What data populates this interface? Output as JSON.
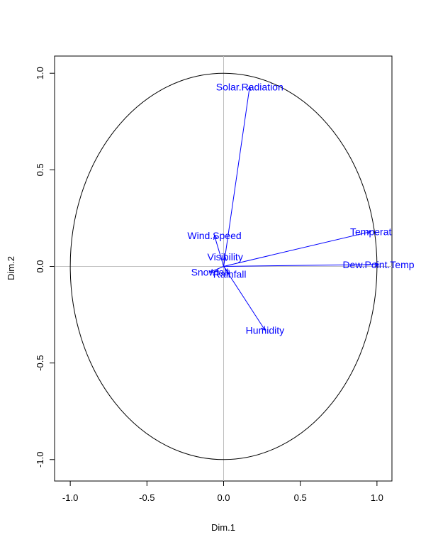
{
  "chart_data": {
    "type": "scatter",
    "xlabel": "Dim.1",
    "ylabel": "Dim.2",
    "xlim": [
      -1.1,
      1.1
    ],
    "ylim": [
      -1.1,
      1.1
    ],
    "x_ticks": [
      -1.0,
      -0.5,
      0.0,
      0.5,
      1.0
    ],
    "x_tick_labels": [
      "-1.0",
      "-0.5",
      "0.0",
      "0.5",
      "1.0"
    ],
    "y_ticks": [
      -1.0,
      -0.5,
      0.0,
      0.5,
      1.0
    ],
    "y_tick_labels": [
      "-1.0",
      "-0.5",
      "0.0",
      "0.5",
      "1.0"
    ],
    "unit_circle": true,
    "reference_lines": [
      0,
      0
    ],
    "arrow_color": "#0000ff",
    "variables": [
      {
        "label": "Solar.Radiation",
        "x": 0.17,
        "y": 0.93
      },
      {
        "label": "Temperat",
        "x": 0.96,
        "y": 0.18
      },
      {
        "label": "Dew.Point.Temp",
        "x": 1.01,
        "y": 0.01
      },
      {
        "label": "Wind.Speed",
        "x": -0.06,
        "y": 0.16
      },
      {
        "label": "Visibility",
        "x": 0.01,
        "y": 0.05
      },
      {
        "label": "Snowfall",
        "x": -0.09,
        "y": -0.03
      },
      {
        "label": "Rainfall",
        "x": 0.04,
        "y": -0.04
      },
      {
        "label": "Humidity",
        "x": 0.27,
        "y": -0.33
      }
    ]
  }
}
